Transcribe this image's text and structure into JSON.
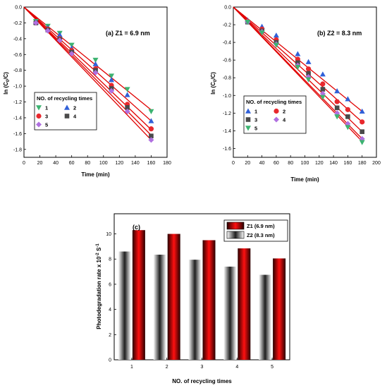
{
  "chart_data": [
    {
      "type": "scatter",
      "panel_label": "(a) Z1 = 6.9 nm",
      "xlabel": "Time (min)",
      "ylabel_main": "ln (C",
      "ylabel_sub0": "0",
      "ylabel_rest": "/C)",
      "xlim": [
        0,
        180
      ],
      "ylim": [
        -1.9,
        0
      ],
      "xticks": [
        0,
        20,
        40,
        60,
        80,
        100,
        120,
        140,
        160,
        180
      ],
      "yticks": [
        0.0,
        -0.2,
        -0.4,
        -0.6,
        -0.8,
        -1.0,
        -1.2,
        -1.4,
        -1.6,
        -1.8
      ],
      "x": [
        15,
        30,
        45,
        60,
        90,
        110,
        130,
        160
      ],
      "legend_title": "NO. of recycling times",
      "legend_position": "lower-left",
      "fit_color": "#e00000",
      "series": [
        {
          "name": "1",
          "marker": "triangle-down",
          "color": "#3cb371",
          "y": [
            -0.18,
            -0.24,
            -0.33,
            -0.48,
            -0.67,
            -0.87,
            -1.04,
            -1.32
          ],
          "fit_end": -1.3
        },
        {
          "name": "2",
          "marker": "triangle-up",
          "color": "#3060d8",
          "y": [
            -0.19,
            -0.26,
            -0.35,
            -0.52,
            -0.72,
            -0.92,
            -1.11,
            -1.44
          ],
          "fit_end": -1.44
        },
        {
          "name": "3",
          "marker": "circle",
          "color": "#e8282d",
          "y": [
            -0.2,
            -0.28,
            -0.4,
            -0.55,
            -0.78,
            -0.99,
            -1.23,
            -1.54
          ],
          "fit_end": -1.55
        },
        {
          "name": "4",
          "marker": "square",
          "color": "#4a4a4a",
          "y": [
            -0.2,
            -0.29,
            -0.41,
            -0.57,
            -0.8,
            -1.03,
            -1.27,
            -1.63
          ],
          "fit_end": -1.62
        },
        {
          "name": "5",
          "marker": "diamond",
          "color": "#b070e0",
          "y": [
            -0.2,
            -0.3,
            -0.42,
            -0.59,
            -0.83,
            -1.06,
            -1.32,
            -1.68
          ],
          "fit_end": -1.68
        }
      ]
    },
    {
      "type": "scatter",
      "panel_label": "(b) Z2 = 8.3 nm",
      "xlabel": "Time (min)",
      "ylabel_main": "ln (C",
      "ylabel_sub0": "0",
      "ylabel_rest": "/C)",
      "xlim": [
        0,
        200
      ],
      "ylim": [
        -1.7,
        0
      ],
      "xticks": [
        0,
        20,
        40,
        60,
        80,
        100,
        120,
        140,
        160,
        180,
        200
      ],
      "yticks": [
        0.0,
        -0.2,
        -0.4,
        -0.6,
        -0.8,
        -1.0,
        -1.2,
        -1.4,
        -1.6
      ],
      "x": [
        20,
        40,
        60,
        90,
        105,
        125,
        145,
        160,
        180
      ],
      "legend_title": "NO. of recycling times",
      "legend_position": "lower-left",
      "fit_color": "#e00000",
      "series": [
        {
          "name": "1",
          "marker": "triangle-up",
          "color": "#3060d8",
          "y": [
            -0.15,
            -0.22,
            -0.32,
            -0.53,
            -0.62,
            -0.76,
            -0.95,
            -1.04,
            -1.18
          ],
          "fit_end": -1.18
        },
        {
          "name": "2",
          "marker": "circle",
          "color": "#e8282d",
          "y": [
            -0.16,
            -0.25,
            -0.37,
            -0.59,
            -0.7,
            -0.87,
            -1.07,
            -1.16,
            -1.3
          ],
          "fit_end": -1.3
        },
        {
          "name": "3",
          "marker": "square",
          "color": "#4a4a4a",
          "y": [
            -0.17,
            -0.27,
            -0.4,
            -0.63,
            -0.75,
            -0.93,
            -1.14,
            -1.24,
            -1.41
          ],
          "fit_end": -1.41
        },
        {
          "name": "4",
          "marker": "diamond",
          "color": "#b070e0",
          "y": [
            -0.17,
            -0.28,
            -0.42,
            -0.66,
            -0.79,
            -0.98,
            -1.2,
            -1.32,
            -1.49
          ],
          "fit_end": -1.49
        },
        {
          "name": "5",
          "marker": "triangle-down",
          "color": "#3cb371",
          "y": [
            -0.17,
            -0.29,
            -0.43,
            -0.68,
            -0.82,
            -1.02,
            -1.24,
            -1.36,
            -1.53
          ],
          "fit_end": -1.52
        }
      ]
    },
    {
      "type": "bar",
      "panel_label": "(c)",
      "xlabel": "NO. of recycling times",
      "ylabel_main": "Photodegradation rate x 10",
      "ylabel_sup1": "-2",
      "ylabel_mid": " S",
      "ylabel_sup2": "-1",
      "categories": [
        "1",
        "2",
        "3",
        "4",
        "5"
      ],
      "ylim": [
        0,
        11.6
      ],
      "yticks": [
        0,
        2,
        4,
        6,
        8,
        10
      ],
      "legend_position": "top-right",
      "series": [
        {
          "name": "Z2 (8.3 nm)",
          "style": "gray-gradient",
          "values": [
            8.6,
            8.35,
            7.95,
            7.4,
            6.75
          ]
        },
        {
          "name": "Z1 (6.9 nm)",
          "style": "red-gradient",
          "values": [
            10.3,
            10.0,
            9.5,
            8.85,
            8.05
          ]
        }
      ]
    }
  ]
}
